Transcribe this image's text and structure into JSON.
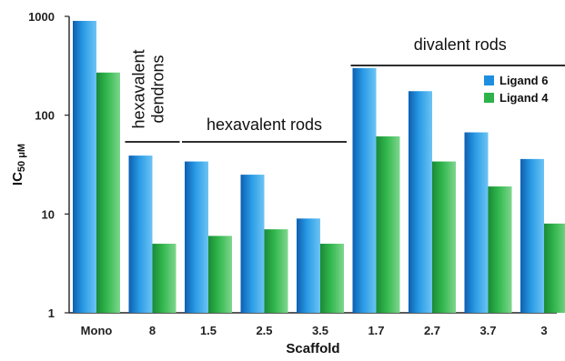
{
  "chart_data": {
    "type": "bar",
    "title": "",
    "xlabel": "Scaffold",
    "ylabel": {
      "main": "IC",
      "sub": "50 μM"
    },
    "yscale": "log",
    "ylim": [
      1,
      1000
    ],
    "yticks": [
      "1",
      "10",
      "100",
      "1000"
    ],
    "grid": false,
    "legend_position": "right",
    "categories": [
      "Mono",
      "8",
      "1.5",
      "2.5",
      "3.5",
      "1.7",
      "2.7",
      "3.7",
      "3"
    ],
    "series": [
      {
        "name": "Ligand 6",
        "color": "#1e8fe0",
        "values": [
          900,
          39,
          34,
          25,
          9,
          300,
          175,
          67,
          36
        ]
      },
      {
        "name": "Ligand 4",
        "color": "#2db34a",
        "values": [
          270,
          5,
          6,
          7,
          5,
          61,
          34,
          19,
          8
        ]
      }
    ],
    "annotations": [
      {
        "lines": [
          "hexavalent",
          "dendrons"
        ],
        "from": "8",
        "to": "8"
      },
      {
        "lines": [
          "hexavalent rods"
        ],
        "from": "1.5",
        "to": "3.5"
      },
      {
        "lines": [
          "divalent rods"
        ],
        "from": "1.7",
        "to": "3"
      }
    ]
  }
}
